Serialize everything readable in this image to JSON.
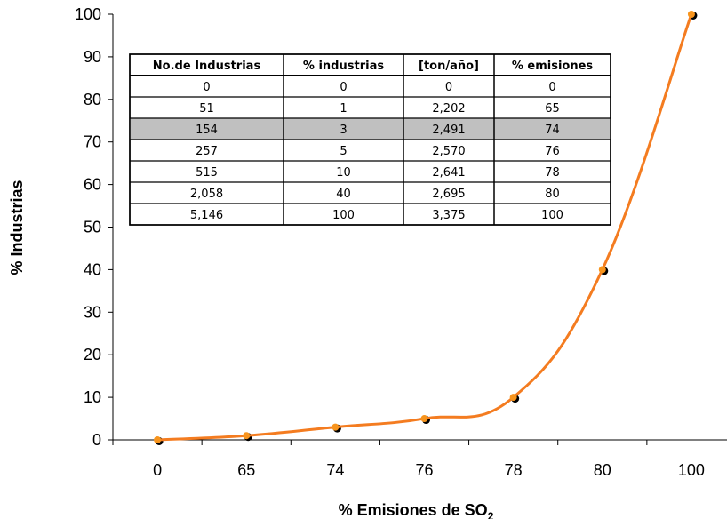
{
  "chart_data": {
    "type": "line",
    "title": "",
    "xlabel_main": "% Emisiones de SO",
    "xlabel_sub": "2",
    "ylabel": "% Industrias",
    "categories": [
      "0",
      "65",
      "74",
      "76",
      "78",
      "80",
      "100"
    ],
    "yticks": [
      "0",
      "10",
      "20",
      "30",
      "40",
      "50",
      "60",
      "70",
      "80",
      "90",
      "100"
    ],
    "ylim": [
      0,
      100
    ],
    "grid": false,
    "series": [
      {
        "values": [
          0,
          1,
          3,
          5,
          10,
          40,
          100
        ],
        "marker_color": "#000000",
        "line_color": "#F47C20",
        "point_color": "#F7941D"
      }
    ],
    "table": {
      "headers": [
        "No.de Industrias",
        "% industrias",
        "[ton/año]",
        "% emisiones"
      ],
      "rows": [
        [
          "0",
          "0",
          "0",
          "0"
        ],
        [
          "51",
          "1",
          "2,202",
          "65"
        ],
        [
          "154",
          "3",
          "2,491",
          "74"
        ],
        [
          "257",
          "5",
          "2,570",
          "76"
        ],
        [
          "515",
          "10",
          "2,641",
          "78"
        ],
        [
          "2,058",
          "40",
          "2,695",
          "80"
        ],
        [
          "5,146",
          "100",
          "3,375",
          "100"
        ]
      ],
      "highlight_row": 2,
      "highlight_color": "#C0C0C0"
    }
  }
}
